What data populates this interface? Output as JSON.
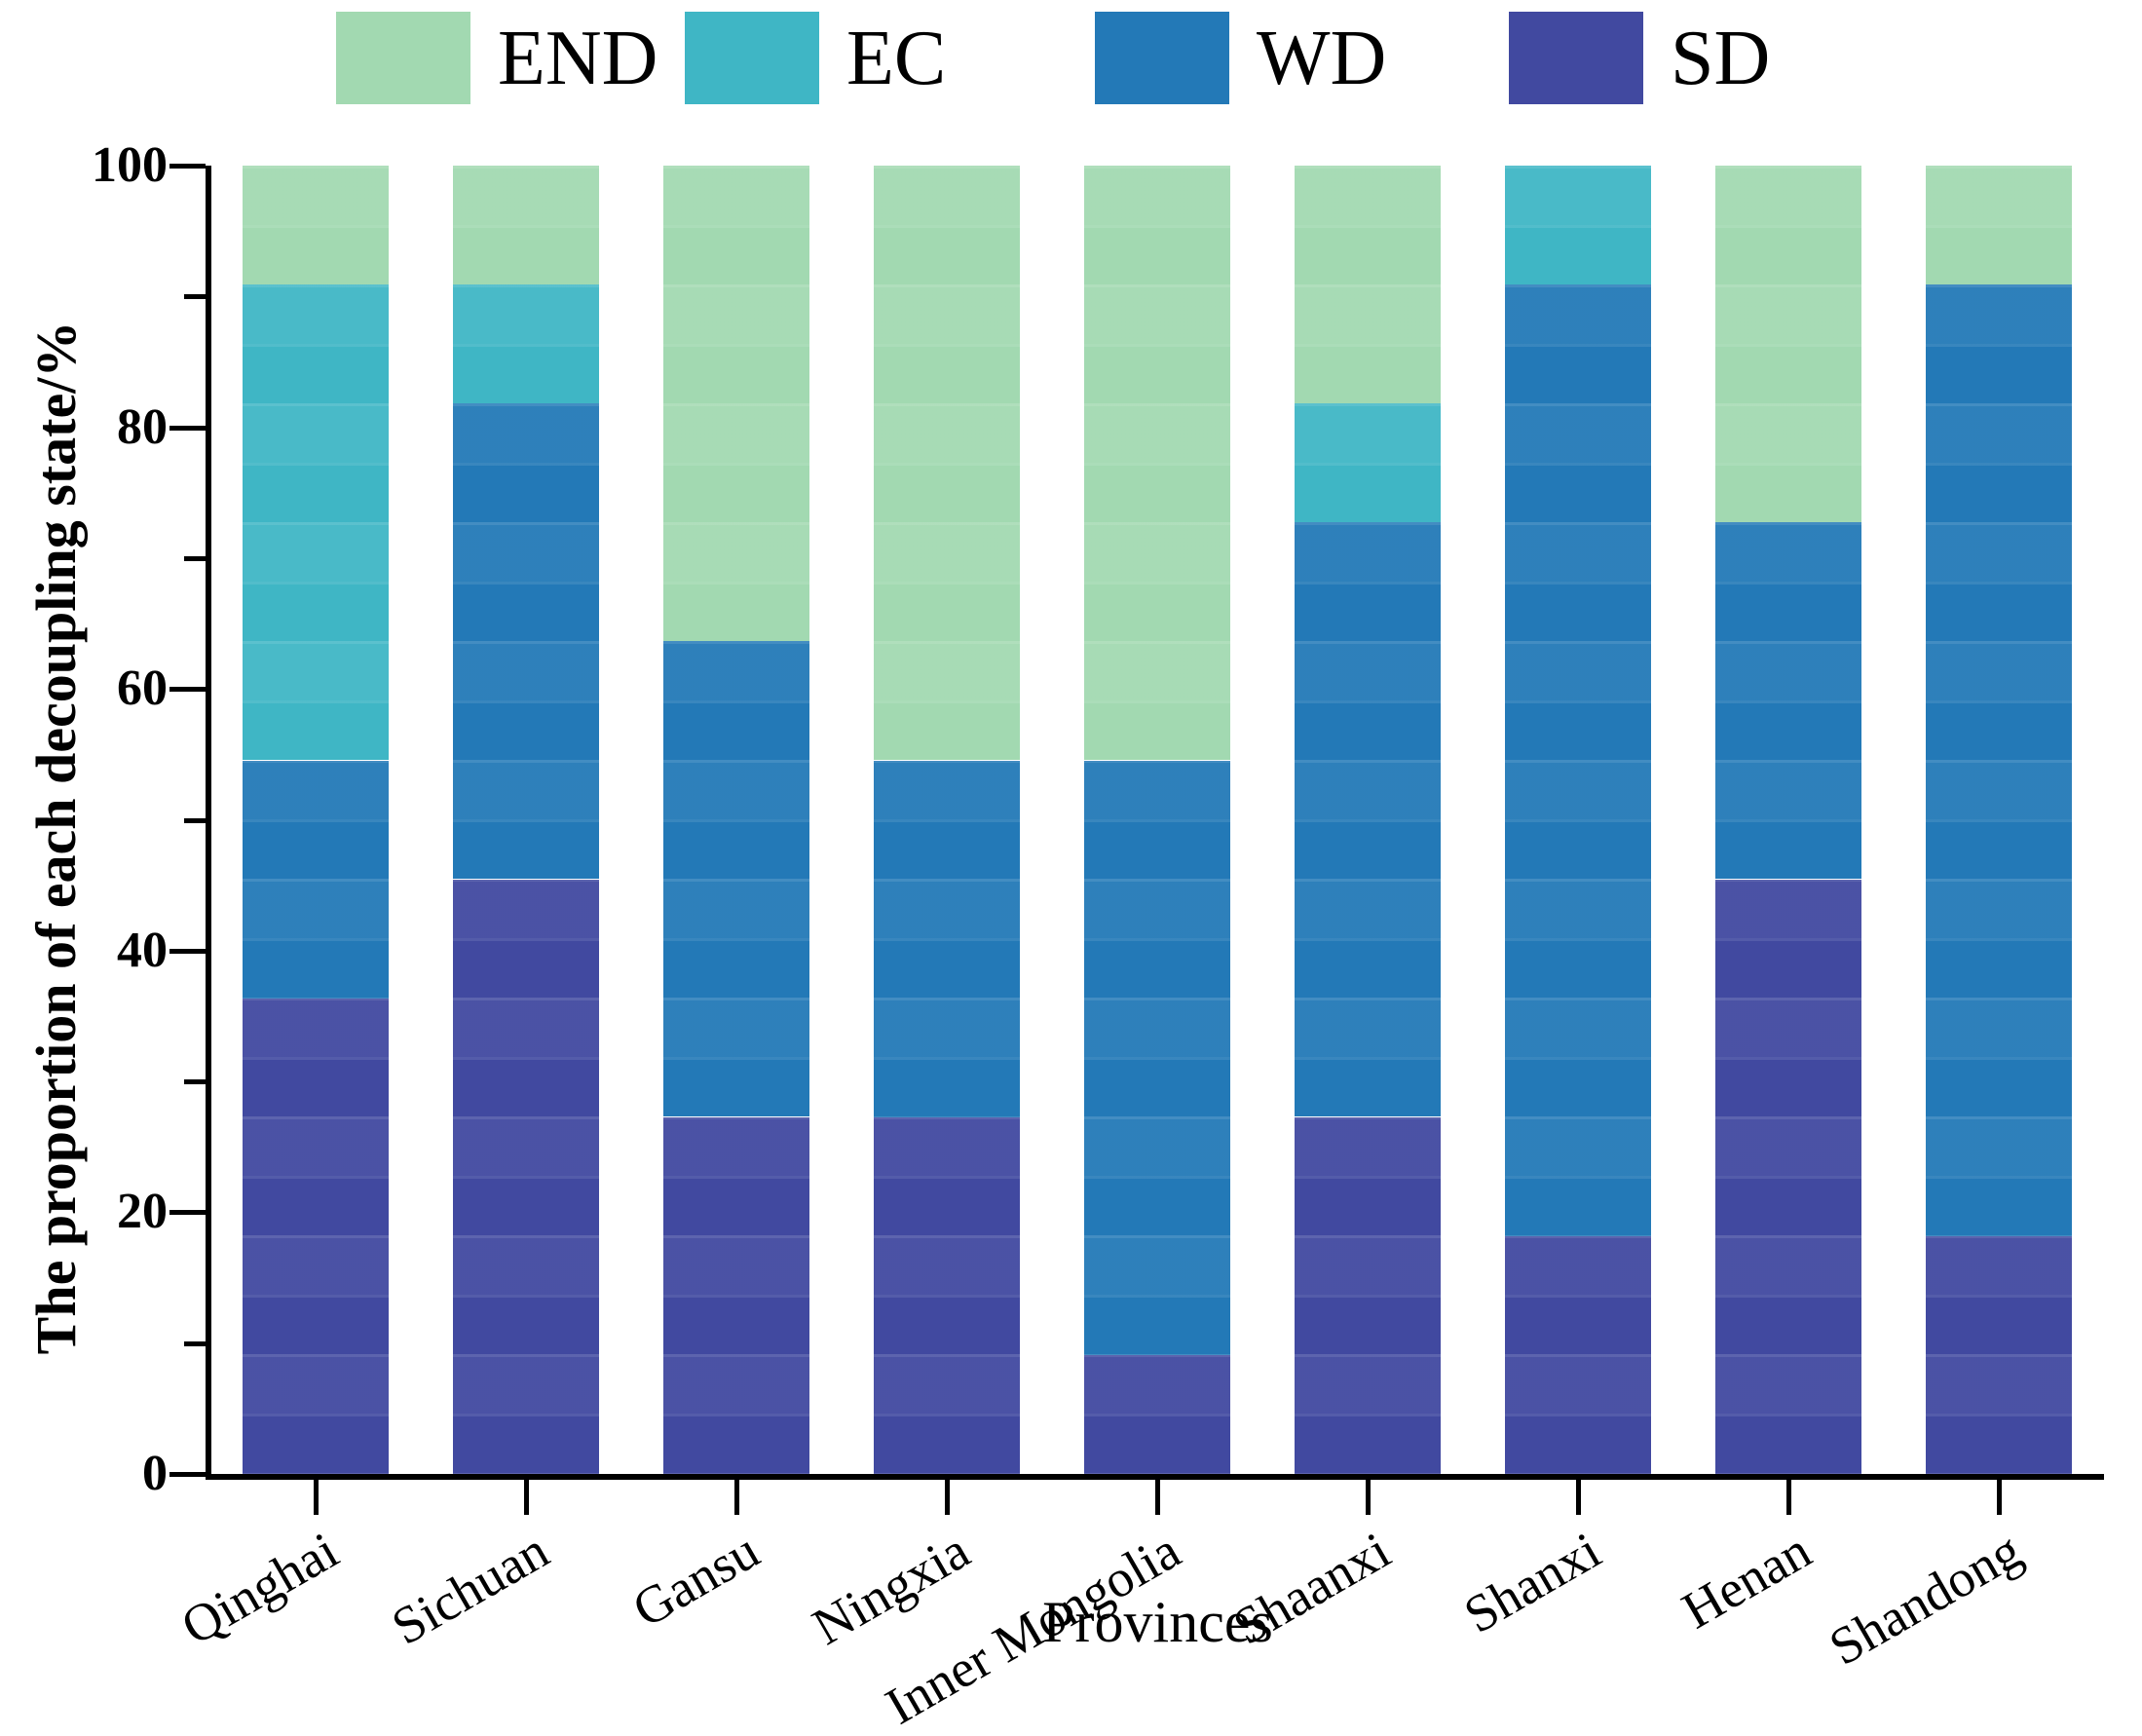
{
  "page": {
    "background": "#ffffff"
  },
  "legend": {
    "items": [
      {
        "label": "END",
        "color": "#a2d9b1"
      },
      {
        "label": "EC",
        "color": "#3fb6c5"
      },
      {
        "label": "WD",
        "color": "#2379b7"
      },
      {
        "label": "SD",
        "color": "#4149a0"
      }
    ]
  },
  "chart_data": {
    "type": "bar",
    "stacked": true,
    "title": "",
    "xlabel": "Provinces",
    "ylabel": "The proportion of each decoupling state/%",
    "categories": [
      "Qinghai",
      "Sichuan",
      "Gansu",
      "Ningxia",
      "Inner Mongolia",
      "Shaanxi",
      "Shanxi",
      "Henan",
      "Shandong"
    ],
    "series": [
      {
        "name": "SD",
        "color": "#4149a0",
        "values": [
          36.36,
          45.45,
          27.27,
          27.27,
          9.09,
          27.27,
          18.18,
          45.45,
          18.18
        ]
      },
      {
        "name": "WD",
        "color": "#2379b7",
        "values": [
          18.18,
          36.36,
          36.36,
          27.27,
          45.45,
          45.45,
          72.73,
          27.27,
          72.73
        ]
      },
      {
        "name": "EC",
        "color": "#3fb6c5",
        "values": [
          36.36,
          9.09,
          0,
          0,
          0,
          9.09,
          9.09,
          0,
          0
        ]
      },
      {
        "name": "END",
        "color": "#a2d9b1",
        "values": [
          9.09,
          9.09,
          36.36,
          45.45,
          45.45,
          18.18,
          0,
          27.27,
          9.09
        ]
      }
    ],
    "ylim": [
      0,
      100
    ],
    "yticks": [
      0,
      20,
      40,
      60,
      80,
      100
    ],
    "minor_yticks": [
      10,
      30,
      50,
      70,
      90
    ],
    "grid": false,
    "legend_position": "top",
    "axis_color": "#000000"
  }
}
